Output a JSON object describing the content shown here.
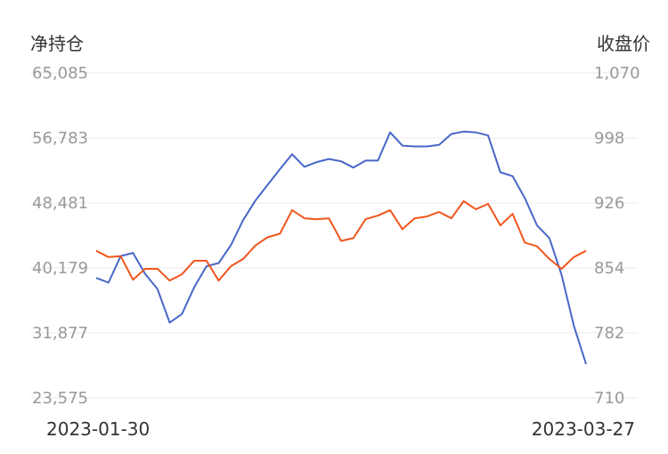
{
  "chart_data": {
    "type": "line",
    "left_axis_title": "净持仓",
    "right_axis_title": "收盘价",
    "x_start_label": "2023-01-30",
    "x_end_label": "2023-03-27",
    "left_ticks": [
      "23,575",
      "31,877",
      "40,179",
      "48,481",
      "56,783",
      "65,085"
    ],
    "right_ticks": [
      "710",
      "782",
      "854",
      "926",
      "998",
      "1,070"
    ],
    "left_ylim": [
      23575,
      65085
    ],
    "right_ylim": [
      710,
      1070
    ],
    "grid": true,
    "series": [
      {
        "axis": "left",
        "color": "#4867c8",
        "values": [
          38900,
          38300,
          41700,
          42100,
          39400,
          37500,
          33200,
          34300,
          37700,
          40400,
          40800,
          43100,
          46300,
          48800,
          50800,
          52800,
          54700,
          53100,
          53700,
          54100,
          53800,
          53000,
          53900,
          53900,
          57500,
          55800,
          55700,
          55700,
          55900,
          57300,
          57600,
          57500,
          57100,
          52400,
          51900,
          49100,
          45600,
          44000,
          39300,
          32800,
          27900
        ]
      },
      {
        "axis": "right",
        "color": "#f0561e",
        "values": [
          873,
          866,
          867,
          841,
          853,
          853,
          840,
          847,
          862,
          862,
          840,
          856,
          864,
          879,
          888,
          892,
          918,
          909,
          908,
          909,
          884,
          887,
          908,
          912,
          918,
          897,
          909,
          911,
          916,
          909,
          928,
          919,
          925,
          901,
          914,
          882,
          878,
          864,
          853,
          866,
          873
        ]
      }
    ]
  }
}
